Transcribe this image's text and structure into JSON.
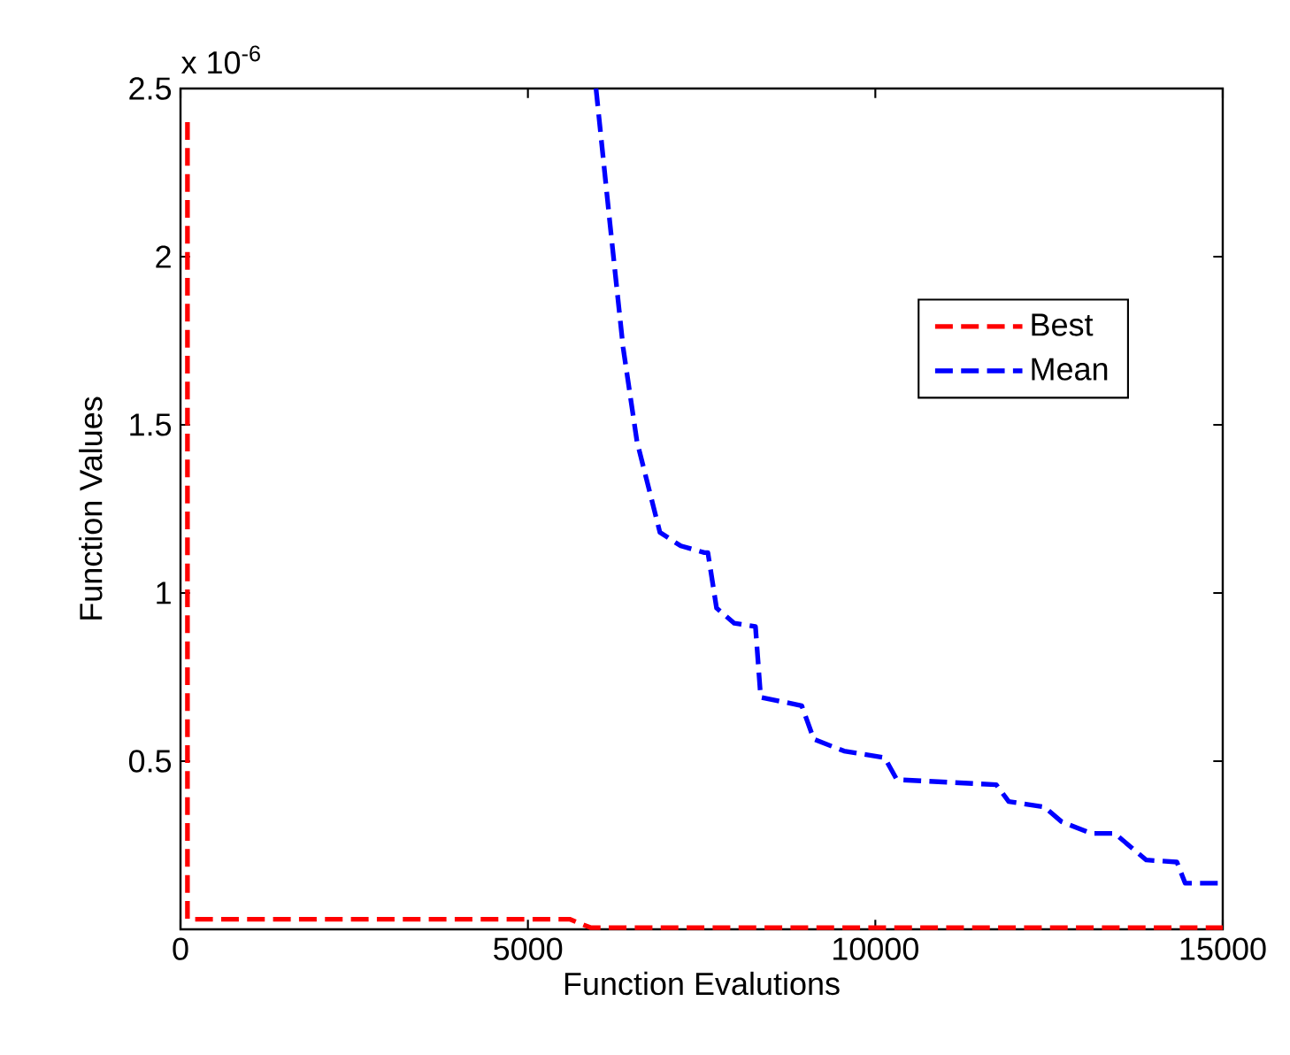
{
  "chart_data": {
    "type": "line",
    "xlabel": "Function Evalutions",
    "ylabel": "Function Values",
    "annotations": [
      "x 10$^{-6}$"
    ],
    "series": [
      {
        "name": "Best",
        "color": "#ff0000",
        "x": [
          100,
          100,
          5600,
          5900,
          15000
        ],
        "values": [
          2.4,
          0.03,
          0.03,
          0.005,
          0.005
        ]
      },
      {
        "name": "Mean",
        "color": "#0000ff",
        "x": [
          5980,
          6190,
          6370,
          6570,
          6900,
          7200,
          7540,
          7590,
          7715,
          7970,
          8275,
          8350,
          8940,
          9115,
          9550,
          10135,
          10310,
          11740,
          11920,
          12430,
          12680,
          13110,
          13445,
          13900,
          14340,
          14460,
          15000
        ],
        "values": [
          2.5,
          2.08,
          1.73,
          1.45,
          1.18,
          1.14,
          1.12,
          1.12,
          0.955,
          0.91,
          0.9,
          0.69,
          0.665,
          0.565,
          0.53,
          0.51,
          0.445,
          0.43,
          0.38,
          0.364,
          0.32,
          0.285,
          0.285,
          0.206,
          0.2,
          0.137,
          0.137
        ]
      }
    ],
    "xlim": [
      0,
      15000
    ],
    "ylim": [
      0,
      2.5
    ],
    "xticks": [
      0,
      5000,
      10000,
      15000
    ],
    "yticks": [
      0.5,
      1,
      1.5,
      2,
      2.5
    ],
    "grid": false,
    "legend": "right",
    "line_style": "dashed",
    "marker": "none"
  }
}
